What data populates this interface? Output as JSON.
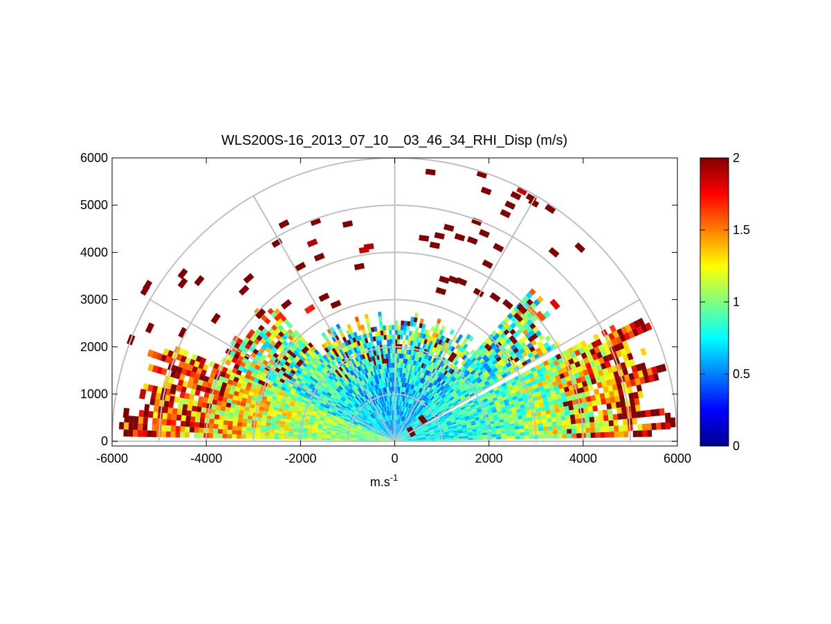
{
  "chart_data": {
    "type": "heatmap",
    "subtype": "polar RHI scan (range-height indicator)",
    "title": "WLS200S-16_2013_07_10__03_46_34_RHI_Disp (m/s)",
    "xlabel": "m.s",
    "xlabel_superscript": "-1",
    "ylabel": "",
    "xlim": [
      -6000,
      6000
    ],
    "ylim": [
      -100,
      6000
    ],
    "xticks": [
      -6000,
      -4000,
      -2000,
      0,
      2000,
      4000,
      6000
    ],
    "xtick_labels": [
      "-6000",
      "-4000",
      "-2000",
      "0",
      "2000",
      "4000",
      "6000"
    ],
    "yticks": [
      0,
      1000,
      2000,
      3000,
      4000,
      5000,
      6000
    ],
    "ytick_labels": [
      "0",
      "1000",
      "2000",
      "3000",
      "4000",
      "5000",
      "6000"
    ],
    "polar_grid": {
      "range_rings": [
        1000,
        2000,
        3000,
        4000,
        5000,
        6000
      ],
      "spoke_angles_deg": [
        0,
        30,
        60,
        90,
        120,
        150,
        180
      ]
    },
    "colorbar": {
      "colormap": "jet",
      "range": [
        0,
        2
      ],
      "ticks": [
        0,
        0.5,
        1,
        1.5,
        2
      ],
      "tick_labels": [
        "0",
        "0.5",
        "1",
        "1.5",
        "2"
      ]
    },
    "sectors": [
      {
        "name": "left-low",
        "elev_deg": [
          1,
          23
        ],
        "r_max": 5900,
        "base_value": 1.0,
        "far_value": 2.0
      },
      {
        "name": "left-mid",
        "elev_deg": [
          23,
          48
        ],
        "r_max": 4100,
        "base_value": 0.7,
        "far_value": 1.4
      },
      {
        "name": "center",
        "elev_deg": [
          48,
          132
        ],
        "r_max": 2750,
        "base_value": 0.6,
        "far_value": 1.1
      },
      {
        "name": "right-upper",
        "elev_deg": [
          132,
          150
        ],
        "r_max": 4300,
        "base_value": 0.75,
        "far_value": 1.1
      },
      {
        "name": "right-blue",
        "elev_deg": [
          148,
          151
        ],
        "r_max": 1200,
        "base_value": 0.1,
        "far_value": 0.2
      },
      {
        "name": "right-low",
        "elev_deg": [
          152,
          179
        ],
        "r_max": 6000,
        "base_value": 0.75,
        "far_value": 2.0
      }
    ],
    "scatter_points": [
      {
        "x": 760,
        "y": 5700,
        "value": 2
      },
      {
        "x": 1850,
        "y": 5650,
        "value": 2
      },
      {
        "x": 1940,
        "y": 5300,
        "value": 2
      },
      {
        "x": 2570,
        "y": 5200,
        "value": 2
      },
      {
        "x": 2700,
        "y": 5300,
        "value": 1.85
      },
      {
        "x": 2450,
        "y": 5000,
        "value": 2
      },
      {
        "x": 2350,
        "y": 4820,
        "value": 2
      },
      {
        "x": 2900,
        "y": 5150,
        "value": 2
      },
      {
        "x": 2950,
        "y": 5050,
        "value": 2
      },
      {
        "x": 3300,
        "y": 4920,
        "value": 2
      },
      {
        "x": 1740,
        "y": 4650,
        "value": 2
      },
      {
        "x": 1900,
        "y": 4400,
        "value": 2
      },
      {
        "x": 1150,
        "y": 4520,
        "value": 2
      },
      {
        "x": 950,
        "y": 4350,
        "value": 2
      },
      {
        "x": 620,
        "y": 4300,
        "value": 2
      },
      {
        "x": 850,
        "y": 4150,
        "value": 2
      },
      {
        "x": 1380,
        "y": 4320,
        "value": 2
      },
      {
        "x": 1650,
        "y": 4250,
        "value": 2
      },
      {
        "x": 2200,
        "y": 4100,
        "value": 2
      },
      {
        "x": 3380,
        "y": 4000,
        "value": 2
      },
      {
        "x": 3930,
        "y": 4100,
        "value": 2
      },
      {
        "x": 1970,
        "y": 3750,
        "value": 2
      },
      {
        "x": 1050,
        "y": 3420,
        "value": 2
      },
      {
        "x": 1250,
        "y": 3420,
        "value": 2
      },
      {
        "x": 1420,
        "y": 3380,
        "value": 2
      },
      {
        "x": 980,
        "y": 3180,
        "value": 2
      },
      {
        "x": 1780,
        "y": 3150,
        "value": 2
      },
      {
        "x": 2130,
        "y": 3050,
        "value": 2
      },
      {
        "x": 2400,
        "y": 2900,
        "value": 2
      },
      {
        "x": 2700,
        "y": 2800,
        "value": 2
      },
      {
        "x": 3100,
        "y": 2650,
        "value": 1.6
      },
      {
        "x": 3400,
        "y": 2900,
        "value": 1.8
      },
      {
        "x": -1680,
        "y": 4650,
        "value": 2
      },
      {
        "x": -1750,
        "y": 4200,
        "value": 1.9
      },
      {
        "x": -2350,
        "y": 4600,
        "value": 2
      },
      {
        "x": -1000,
        "y": 4600,
        "value": 2
      },
      {
        "x": -2500,
        "y": 4200,
        "value": 2
      },
      {
        "x": -650,
        "y": 4050,
        "value": 1.85
      },
      {
        "x": -550,
        "y": 4120,
        "value": 1.9
      },
      {
        "x": -1600,
        "y": 3900,
        "value": 2
      },
      {
        "x": -750,
        "y": 3700,
        "value": 2
      },
      {
        "x": -2000,
        "y": 3700,
        "value": 2
      },
      {
        "x": -3100,
        "y": 3450,
        "value": 2
      },
      {
        "x": -4150,
        "y": 3400,
        "value": 2
      },
      {
        "x": -4500,
        "y": 3350,
        "value": 2
      },
      {
        "x": -4500,
        "y": 3550,
        "value": 2
      },
      {
        "x": -5250,
        "y": 3300,
        "value": 2
      },
      {
        "x": -5300,
        "y": 3200,
        "value": 2
      },
      {
        "x": -3200,
        "y": 3200,
        "value": 2
      },
      {
        "x": -2300,
        "y": 2900,
        "value": 2
      },
      {
        "x": -1500,
        "y": 3050,
        "value": 2
      },
      {
        "x": -3800,
        "y": 2600,
        "value": 2
      },
      {
        "x": -4500,
        "y": 2300,
        "value": 2
      },
      {
        "x": -5200,
        "y": 2400,
        "value": 2
      },
      {
        "x": -5600,
        "y": 2150,
        "value": 2
      },
      {
        "x": -2850,
        "y": 2700,
        "value": 2
      },
      {
        "x": -1800,
        "y": 2800,
        "value": 1.7
      },
      {
        "x": -1250,
        "y": 2900,
        "value": 2
      },
      {
        "x": -5350,
        "y": 1000,
        "value": 1.85
      },
      {
        "x": -5700,
        "y": 600,
        "value": 2
      },
      {
        "x": -4700,
        "y": 1100,
        "value": 2
      },
      {
        "x": 5800,
        "y": 500,
        "value": 2
      },
      {
        "x": 5900,
        "y": 400,
        "value": 2
      },
      {
        "x": 600,
        "y": 450,
        "value": 2
      },
      {
        "x": 350,
        "y": 200,
        "value": 2
      }
    ]
  }
}
